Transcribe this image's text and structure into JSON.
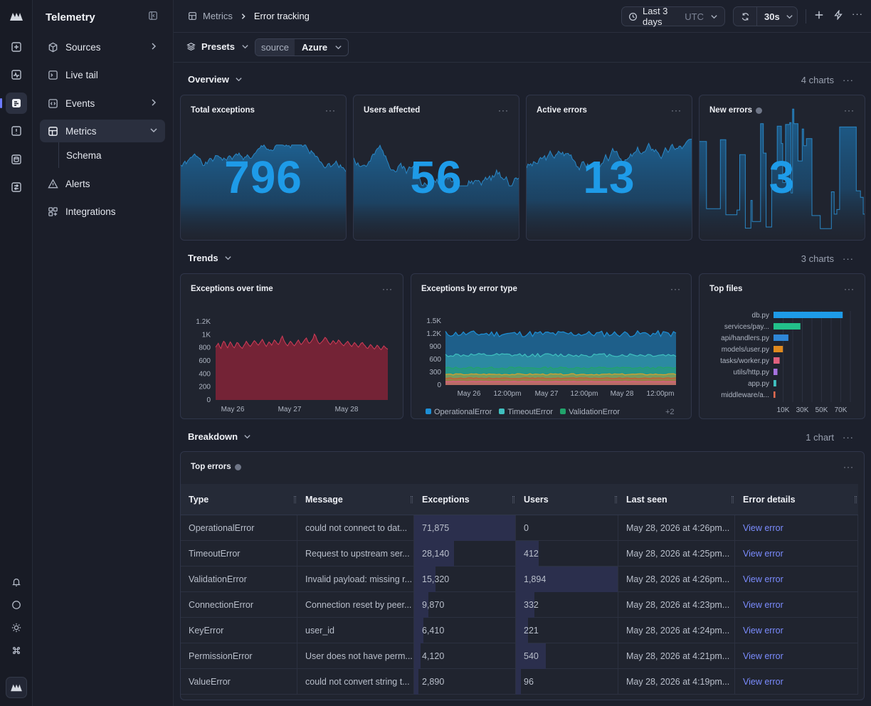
{
  "app": {
    "title": "Telemetry"
  },
  "sidebar": {
    "items": [
      {
        "label": "Sources",
        "icon": "cube-icon"
      },
      {
        "label": "Live tail",
        "icon": "terminal-icon"
      },
      {
        "label": "Events",
        "icon": "code-icon"
      },
      {
        "label": "Metrics",
        "icon": "table-grid-icon"
      },
      {
        "label": "Alerts",
        "icon": "warning-triangle-icon"
      },
      {
        "label": "Integrations",
        "icon": "integrations-icon"
      }
    ],
    "sub_item": "Schema"
  },
  "breadcrumb": {
    "parent": "Metrics",
    "current": "Error tracking"
  },
  "toolbar": {
    "time_range": "Last 3 days",
    "timezone": "UTC",
    "refresh_interval": "30s"
  },
  "filters": {
    "presets_label": "Presets",
    "chip_key": "source",
    "chip_value": "Azure"
  },
  "sections": {
    "overview": {
      "title": "Overview",
      "count": "4 charts"
    },
    "trends": {
      "title": "Trends",
      "count": "3 charts"
    },
    "breakdown": {
      "title": "Breakdown",
      "count": "1 chart"
    }
  },
  "stats": [
    {
      "title": "Total exceptions",
      "value": "796"
    },
    {
      "title": "Users affected",
      "value": "56"
    },
    {
      "title": "Active errors",
      "value": "13"
    },
    {
      "title": "New errors",
      "value": "3"
    }
  ],
  "colors": {
    "accent": "#1e9be8",
    "link": "#7b8cff",
    "area_red": "#c2334d"
  },
  "chart_data": [
    {
      "type": "area",
      "title": "Exceptions over time",
      "x_ticks": [
        "May 26",
        "May 27",
        "May 28"
      ],
      "y_ticks": [
        "0",
        "200",
        "400",
        "600",
        "800",
        "1K",
        "1.2K"
      ],
      "ylim": [
        0,
        1200
      ],
      "values": [
        810,
        840,
        870,
        820,
        790,
        860,
        900,
        880,
        830,
        800,
        850,
        890,
        860,
        820,
        800,
        840,
        880,
        870,
        830,
        810,
        790,
        830,
        860,
        900,
        870,
        840,
        820,
        850,
        880,
        910,
        890,
        860,
        840,
        870,
        900,
        930,
        890,
        850,
        820,
        860,
        890,
        870,
        840,
        880,
        920,
        900,
        870,
        850,
        880,
        940,
        980,
        920,
        880,
        850,
        830,
        870,
        900,
        880,
        850,
        830,
        860,
        890,
        920,
        880,
        850,
        870,
        900,
        930,
        950,
        900,
        870,
        880,
        910,
        940,
        1010,
        980,
        920,
        880,
        860,
        880,
        900,
        930,
        960,
        940,
        900,
        870,
        850,
        880,
        910,
        890,
        860,
        880,
        920,
        900,
        870,
        850,
        830,
        860,
        880,
        900,
        870,
        840,
        820,
        850,
        880,
        860,
        830,
        810,
        840,
        870,
        880,
        850,
        830,
        800,
        790,
        820,
        850,
        830,
        800,
        780,
        810,
        840,
        820,
        790,
        770,
        800,
        830,
        810,
        790,
        780
      ]
    },
    {
      "type": "area",
      "title": "Exceptions by error type",
      "x_ticks": [
        "May 26",
        "12:00pm",
        "May 27",
        "12:00pm",
        "May 28",
        "12:00pm"
      ],
      "y_ticks": [
        "0",
        "300",
        "600",
        "900",
        "1.2K",
        "1.5K"
      ],
      "ylim": [
        0,
        1500
      ],
      "series": [
        {
          "name": "OperationalError",
          "color": "#1d8fd6",
          "level": 1200
        },
        {
          "name": "TimeoutError",
          "color": "#3fbfbf",
          "level": 700
        },
        {
          "name": "ValidationError",
          "color": "#21a36b",
          "level": 400
        },
        {
          "name": "",
          "color": "#d9a12a",
          "level": 250
        },
        {
          "name": "",
          "color": "#c9582e",
          "level": 160
        },
        {
          "name": "",
          "color": "#e05a8a",
          "level": 80
        }
      ],
      "legend_more": "+2"
    },
    {
      "type": "bar",
      "title": "Top files",
      "categories": [
        "db.py",
        "services/pay...",
        "api/handlers.py",
        "models/user.py",
        "tasks/worker.py",
        "utils/http.py",
        "app.py",
        "middleware/a..."
      ],
      "values": [
        72000,
        28000,
        15500,
        9800,
        6400,
        4100,
        2900,
        1900
      ],
      "colors": [
        "#1e9be8",
        "#22c08a",
        "#2f86d6",
        "#e08a1e",
        "#e0607e",
        "#a772e0",
        "#3fbfbf",
        "#e06a50"
      ],
      "x_ticks": [
        "10K",
        "30K",
        "50K",
        "70K"
      ],
      "xlim": [
        0,
        80000
      ]
    }
  ],
  "table": {
    "title": "Top errors",
    "columns": [
      "Type",
      "Message",
      "Exceptions",
      "Users",
      "Last seen",
      "Error details"
    ],
    "rows": [
      {
        "type": "OperationalError",
        "message": "could not connect to dat...",
        "exceptions": "71,875",
        "users": "0",
        "last_seen": "May 28, 2026 at 4:26pm...",
        "details": "View error",
        "exc_fill": 1.0,
        "usr_fill": 0.0
      },
      {
        "type": "TimeoutError",
        "message": "Request to upstream ser...",
        "exceptions": "28,140",
        "users": "412",
        "last_seen": "May 28, 2026 at 4:25pm...",
        "details": "View error",
        "exc_fill": 0.39,
        "usr_fill": 0.22
      },
      {
        "type": "ValidationError",
        "message": "Invalid payload: missing r...",
        "exceptions": "15,320",
        "users": "1,894",
        "last_seen": "May 28, 2026 at 4:26pm...",
        "details": "View error",
        "exc_fill": 0.21,
        "usr_fill": 1.0
      },
      {
        "type": "ConnectionError",
        "message": "Connection reset by peer...",
        "exceptions": "9,870",
        "users": "332",
        "last_seen": "May 28, 2026 at 4:23pm...",
        "details": "View error",
        "exc_fill": 0.14,
        "usr_fill": 0.18
      },
      {
        "type": "KeyError",
        "message": "user_id",
        "exceptions": "6,410",
        "users": "221",
        "last_seen": "May 28, 2026 at 4:24pm...",
        "details": "View error",
        "exc_fill": 0.09,
        "usr_fill": 0.12
      },
      {
        "type": "PermissionError",
        "message": "User does not have perm...",
        "exceptions": "4,120",
        "users": "540",
        "last_seen": "May 28, 2026 at 4:21pm...",
        "details": "View error",
        "exc_fill": 0.06,
        "usr_fill": 0.29
      },
      {
        "type": "ValueError",
        "message": "could not convert string t...",
        "exceptions": "2,890",
        "users": "96",
        "last_seen": "May 28, 2026 at 4:19pm...",
        "details": "View error",
        "exc_fill": 0.04,
        "usr_fill": 0.05
      }
    ]
  }
}
